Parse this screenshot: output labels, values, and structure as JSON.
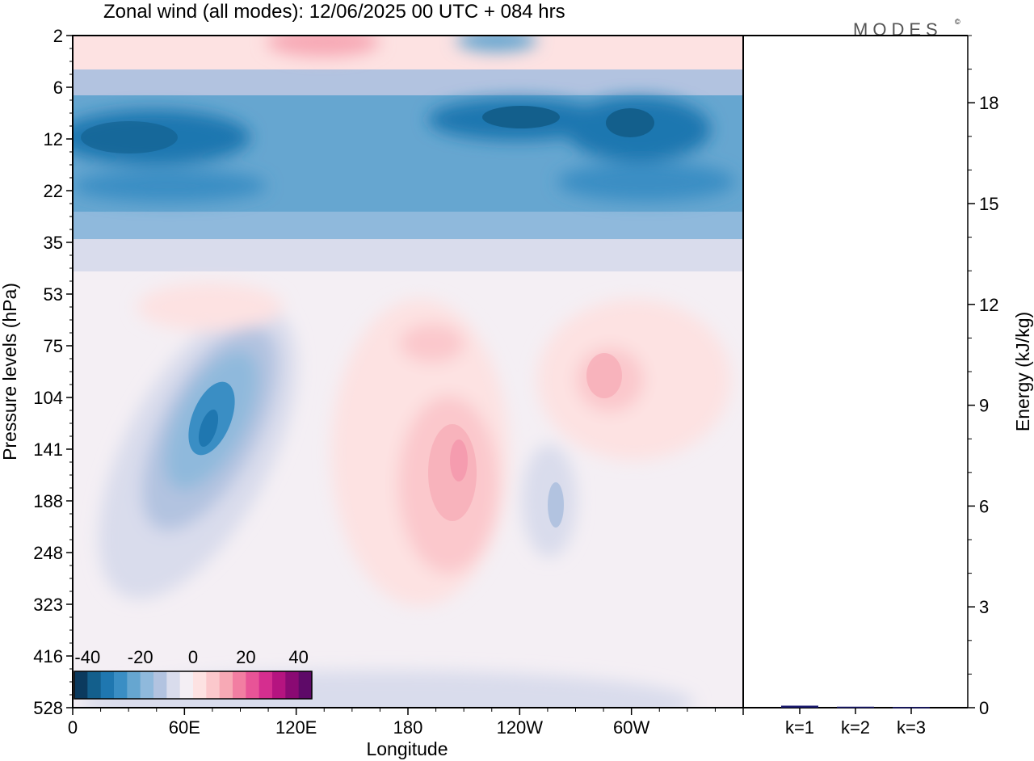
{
  "title": "Zonal wind (all modes):  12/06/2025  00 UTC  + 084 hrs",
  "brand": "MODES",
  "brand_mark": "©",
  "chart_data": [
    {
      "type": "heatmap",
      "title": "Zonal wind (all modes):  12/06/2025  00 UTC  + 084 hrs",
      "xlabel": "Longitude",
      "ylabel": "Pressure levels (hPa)",
      "x_ticks": [
        "0",
        "60E",
        "120E",
        "180",
        "120W",
        "60W"
      ],
      "x_tick_values": [
        0,
        60,
        120,
        180,
        240,
        300
      ],
      "xlim": [
        0,
        360
      ],
      "y_ticks": [
        "2",
        "6",
        "12",
        "22",
        "35",
        "53",
        "75",
        "104",
        "141",
        "188",
        "248",
        "323",
        "416",
        "528"
      ],
      "y_scale": "pressure levels (top to bottom)",
      "colorbar": {
        "ticks": [
          "-40",
          "-20",
          "0",
          "20",
          "40"
        ],
        "range": [
          -45,
          45
        ],
        "step": 5,
        "colors": [
          "#0b3a5e",
          "#135f8c",
          "#1f77b0",
          "#3a8ec4",
          "#66a6d0",
          "#8fb9dc",
          "#b2c3e0",
          "#d9dcec",
          "#f4eff4",
          "#fde2e2",
          "#fbc8cc",
          "#f7a9b5",
          "#f27ea2",
          "#e85497",
          "#d52e8f",
          "#b51480",
          "#8a0a73",
          "#5e0a68"
        ]
      },
      "features": [
        {
          "lon": 90,
          "level": "12",
          "value": -30
        },
        {
          "lon": 240,
          "level": "12",
          "value": -40
        },
        {
          "lon": 75,
          "level": "141",
          "value": -35
        },
        {
          "lon": 205,
          "level": "141",
          "value": 20
        },
        {
          "lon": 285,
          "level": "104",
          "value": 12
        },
        {
          "lon": 130,
          "level": "2",
          "value": 15
        },
        {
          "lon": 245,
          "level": "2",
          "value": -25
        }
      ]
    },
    {
      "type": "bar",
      "ylabel": "Energy (kJ/kg)",
      "categories": [
        "k=1",
        "k=2",
        "k=3"
      ],
      "values": [
        0.06,
        0.03,
        0.02
      ],
      "ylim": [
        0,
        20
      ],
      "y_ticks": [
        "0",
        "3",
        "6",
        "9",
        "12",
        "15",
        "18"
      ],
      "y_tick_values": [
        0,
        3,
        6,
        9,
        12,
        15,
        18
      ]
    }
  ]
}
